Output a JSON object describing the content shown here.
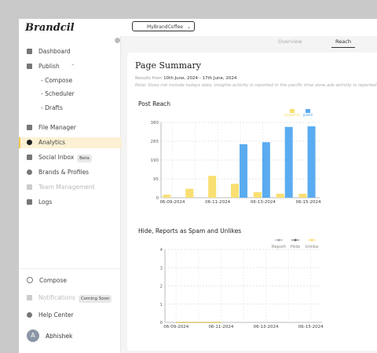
{
  "sidebar": {
    "logo": "Brandcil",
    "items": [
      "Dashboard",
      "Publish",
      "- Compose",
      "- Scheduler",
      "- Drafts",
      "File Manager",
      "Analytics",
      "Social Inbox",
      "Brands & Profiles",
      "Team Management",
      "Logs"
    ],
    "beta_badge": "Beta",
    "bottom": [
      "Compose",
      "Notifications",
      "Help Center"
    ],
    "coming_soon_badge": "Coming Soon",
    "user": {
      "initial": "A",
      "name": "Abhishek"
    }
  },
  "topbar": {
    "brand": "MyBrandCoffee",
    "tabs": [
      "Overview",
      "Reach"
    ]
  },
  "summary": {
    "title": "Page Summary",
    "results_prefix": "Results from",
    "results_range": "10th June, 2024 - 17th June, 2024",
    "note": "Note: Does not include todays data. Insights activity is reported in the pacific time zone.ads activity is reported"
  },
  "chart_data": [
    {
      "type": "bar",
      "title": "Post Reach",
      "categories": [
        "06-09-2024",
        null,
        "06-11-2024",
        null,
        "06-13-2024",
        null,
        "06-15-2024"
      ],
      "series": [
        {
          "name": "organic",
          "color": "#f9df72",
          "values": [
            15,
            45,
            110,
            70,
            28,
            20,
            20
          ]
        },
        {
          "name": "paid",
          "color": "#5aacf0",
          "values": [
            0,
            0,
            0,
            270,
            280,
            357,
            360
          ]
        }
      ],
      "ylim": [
        0,
        380
      ],
      "yticks": [
        0,
        95,
        190,
        285,
        380
      ],
      "grid": true
    },
    {
      "type": "line",
      "title": "Hide, Reports as Spam and Unlikes",
      "categories": [
        "06-09-2024",
        null,
        "06-11-2024",
        null,
        "06-13-2024",
        null,
        "06-15-2024"
      ],
      "series": [
        {
          "name": "Report",
          "color": "#9aa6b2",
          "values": [
            0,
            0,
            0,
            null,
            null,
            null,
            null
          ]
        },
        {
          "name": "Hide",
          "color": "#5f6b76",
          "values": [
            0,
            0,
            0,
            null,
            null,
            null,
            null
          ]
        },
        {
          "name": "Unlike",
          "color": "#f6dc6e",
          "values": [
            0,
            0,
            0,
            null,
            null,
            null,
            null
          ]
        }
      ],
      "ylim": [
        0,
        4
      ],
      "yticks": [
        0,
        1,
        2,
        3,
        4
      ],
      "grid": true
    }
  ]
}
